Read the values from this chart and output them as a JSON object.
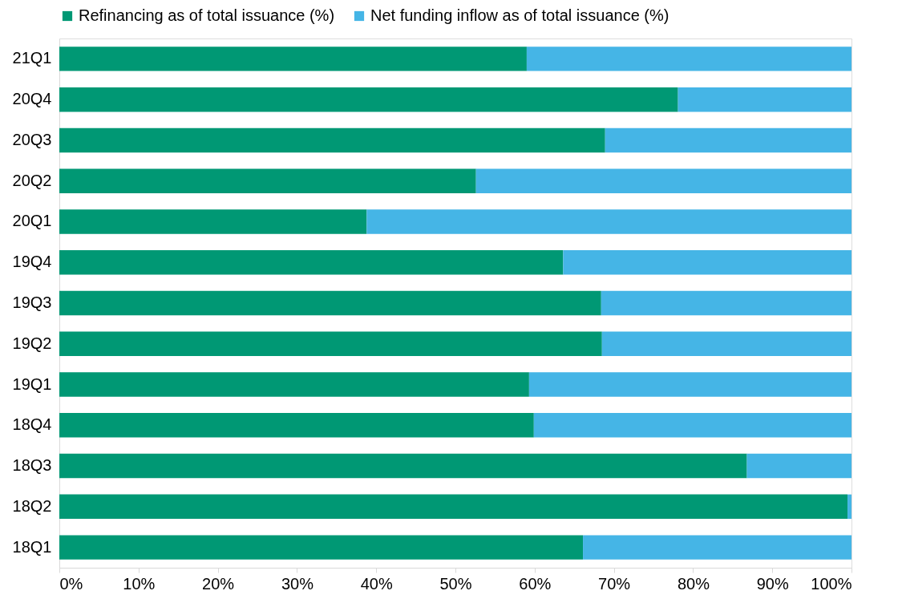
{
  "chart_data": {
    "type": "bar",
    "orientation": "horizontal",
    "stacked": true,
    "categories": [
      "21Q1",
      "20Q4",
      "20Q3",
      "20Q2",
      "20Q1",
      "19Q4",
      "19Q3",
      "19Q2",
      "19Q1",
      "18Q4",
      "18Q3",
      "18Q2",
      "18Q1"
    ],
    "series": [
      {
        "name": "Refinancing as of total issuance (%)",
        "color": "#009874",
        "values": [
          59.0,
          78.1,
          68.9,
          52.6,
          38.8,
          63.6,
          68.4,
          68.5,
          59.3,
          59.9,
          86.8,
          99.5,
          66.1
        ]
      },
      {
        "name": "Net funding inflow as of total issuance (%)",
        "color": "#45b5e6",
        "values": [
          41.0,
          21.9,
          31.1,
          47.4,
          61.2,
          36.4,
          31.6,
          31.5,
          40.7,
          40.1,
          13.2,
          0.5,
          33.9
        ]
      }
    ],
    "xlim": [
      0,
      100
    ],
    "xticks": [
      {
        "value": 0,
        "label": "0%"
      },
      {
        "value": 10,
        "label": "10%"
      },
      {
        "value": 20,
        "label": "20%"
      },
      {
        "value": 30,
        "label": "30%"
      },
      {
        "value": 40,
        "label": "40%"
      },
      {
        "value": 50,
        "label": "50%"
      },
      {
        "value": 60,
        "label": "60%"
      },
      {
        "value": 70,
        "label": "70%"
      },
      {
        "value": 80,
        "label": "80%"
      },
      {
        "value": 90,
        "label": "90%"
      },
      {
        "value": 100,
        "label": "100%"
      }
    ],
    "grid": false,
    "legend": "top"
  }
}
